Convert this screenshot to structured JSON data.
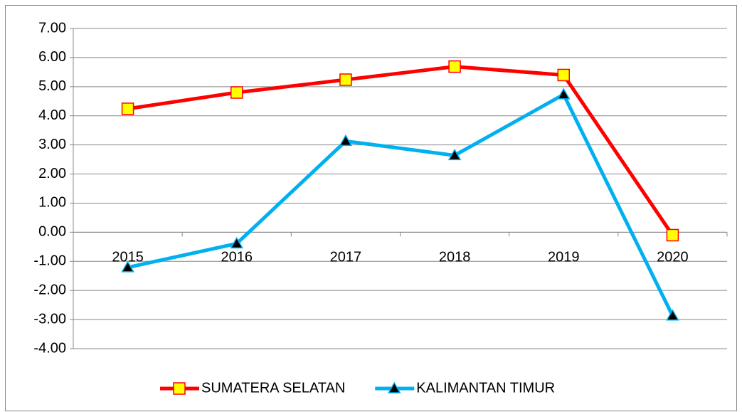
{
  "chart_data": {
    "type": "line",
    "categories": [
      "2015",
      "2016",
      "2017",
      "2018",
      "2019",
      "2020"
    ],
    "series": [
      {
        "name": "SUMATERA SELATAN",
        "color": "#ff0000",
        "marker": "square",
        "marker_fill": "#ffff00",
        "values": [
          4.24,
          4.8,
          5.24,
          5.69,
          5.4,
          -0.1
        ]
      },
      {
        "name": "KALIMANTAN TIMUR",
        "color": "#00b0f0",
        "marker": "triangle",
        "marker_fill": "#000000",
        "values": [
          -1.21,
          -0.39,
          3.13,
          2.64,
          4.73,
          -2.87
        ]
      }
    ],
    "ylim": [
      -4,
      7
    ],
    "yticks": [
      {
        "value": -4,
        "label": "-4.00"
      },
      {
        "value": -3,
        "label": "-3.00"
      },
      {
        "value": -2,
        "label": "-2.00"
      },
      {
        "value": -1,
        "label": "-1.00"
      },
      {
        "value": 0,
        "label": "0.00"
      },
      {
        "value": 1,
        "label": "1.00"
      },
      {
        "value": 2,
        "label": "2.00"
      },
      {
        "value": 3,
        "label": "3.00"
      },
      {
        "value": 4,
        "label": "4.00"
      },
      {
        "value": 5,
        "label": "5.00"
      },
      {
        "value": 6,
        "label": "6.00"
      },
      {
        "value": 7,
        "label": "7.00"
      }
    ],
    "grid": true,
    "legend": "bottom"
  }
}
